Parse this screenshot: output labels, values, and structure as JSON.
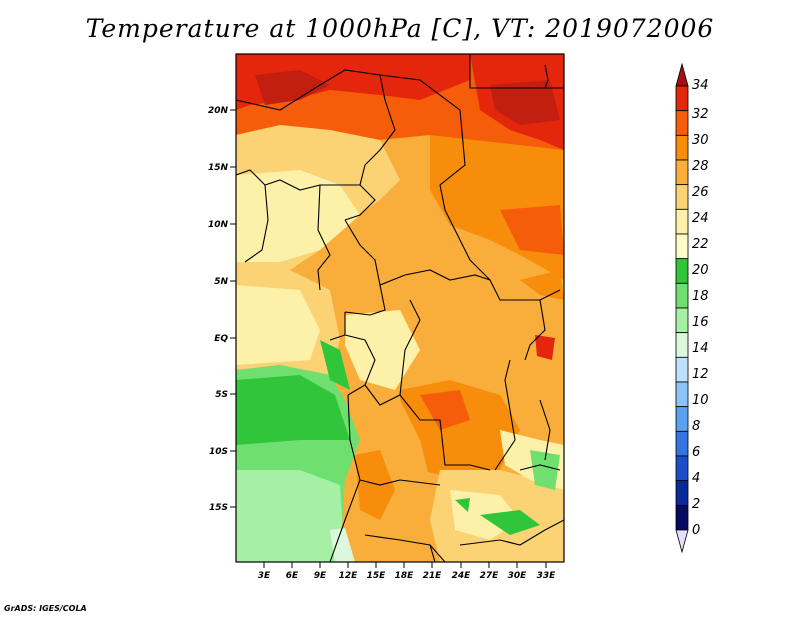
{
  "title": "Temperature at 1000hPa [C], VT: 2019072006",
  "credit": "GrADS: IGES/COLA",
  "map": {
    "lat_ticks": [
      "20N",
      "15N",
      "10N",
      "5N",
      "EQ",
      "5S",
      "10S",
      "15S"
    ],
    "lon_ticks": [
      "3E",
      "6E",
      "9E",
      "12E",
      "15E",
      "18E",
      "21E",
      "24E",
      "27E",
      "30E",
      "33E"
    ]
  },
  "colorbar": {
    "labels": [
      "34",
      "32",
      "30",
      "28",
      "26",
      "24",
      "22",
      "20",
      "18",
      "16",
      "14",
      "12",
      "10",
      "8",
      "6",
      "4",
      "2",
      "0"
    ],
    "colors": [
      "#a50f15",
      "#e4260c",
      "#f55d0a",
      "#f88c0b",
      "#f9ad3a",
      "#fbd274",
      "#fdf0a8",
      "#fefcc8",
      "#30c53a",
      "#6fe06f",
      "#a6f0a6",
      "#dcf7dc",
      "#bfe0fa",
      "#8cc4f5",
      "#5aa2ee",
      "#3476e0",
      "#1b4fc8",
      "#0b2a9a",
      "#060a60",
      "#e3e0ff"
    ]
  }
}
